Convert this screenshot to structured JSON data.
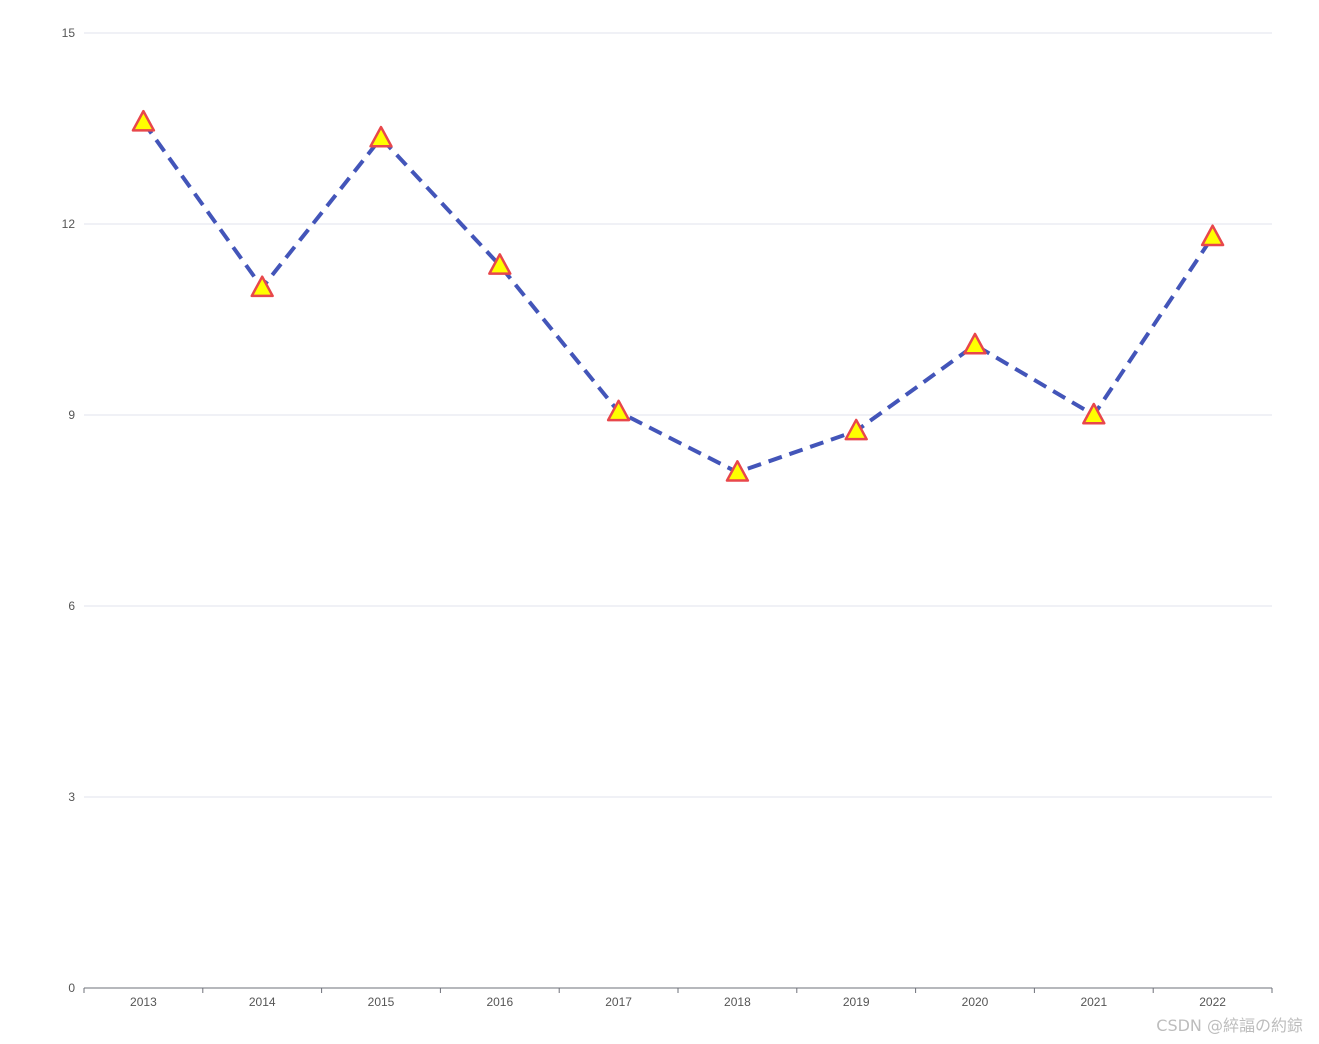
{
  "chart_data": {
    "type": "line",
    "categories": [
      "2013",
      "2014",
      "2015",
      "2016",
      "2017",
      "2018",
      "2019",
      "2020",
      "2021",
      "2022"
    ],
    "series": [
      {
        "values": [
          13.6,
          11.0,
          13.35,
          11.35,
          9.05,
          8.1,
          8.75,
          10.1,
          9.0,
          11.8
        ]
      }
    ],
    "ylim": [
      0,
      15
    ],
    "yticks": [
      0,
      3,
      6,
      9,
      12,
      15
    ],
    "grid": true,
    "line_color": "#4355b9",
    "line_style": "dashed",
    "marker": "triangle",
    "marker_fill": "#ffff00",
    "marker_stroke": "#e8474b",
    "gridline_color": "#e0e3ee",
    "axis_color": "#6e7079"
  },
  "watermark": "CSDN @綷諨の約鍄"
}
